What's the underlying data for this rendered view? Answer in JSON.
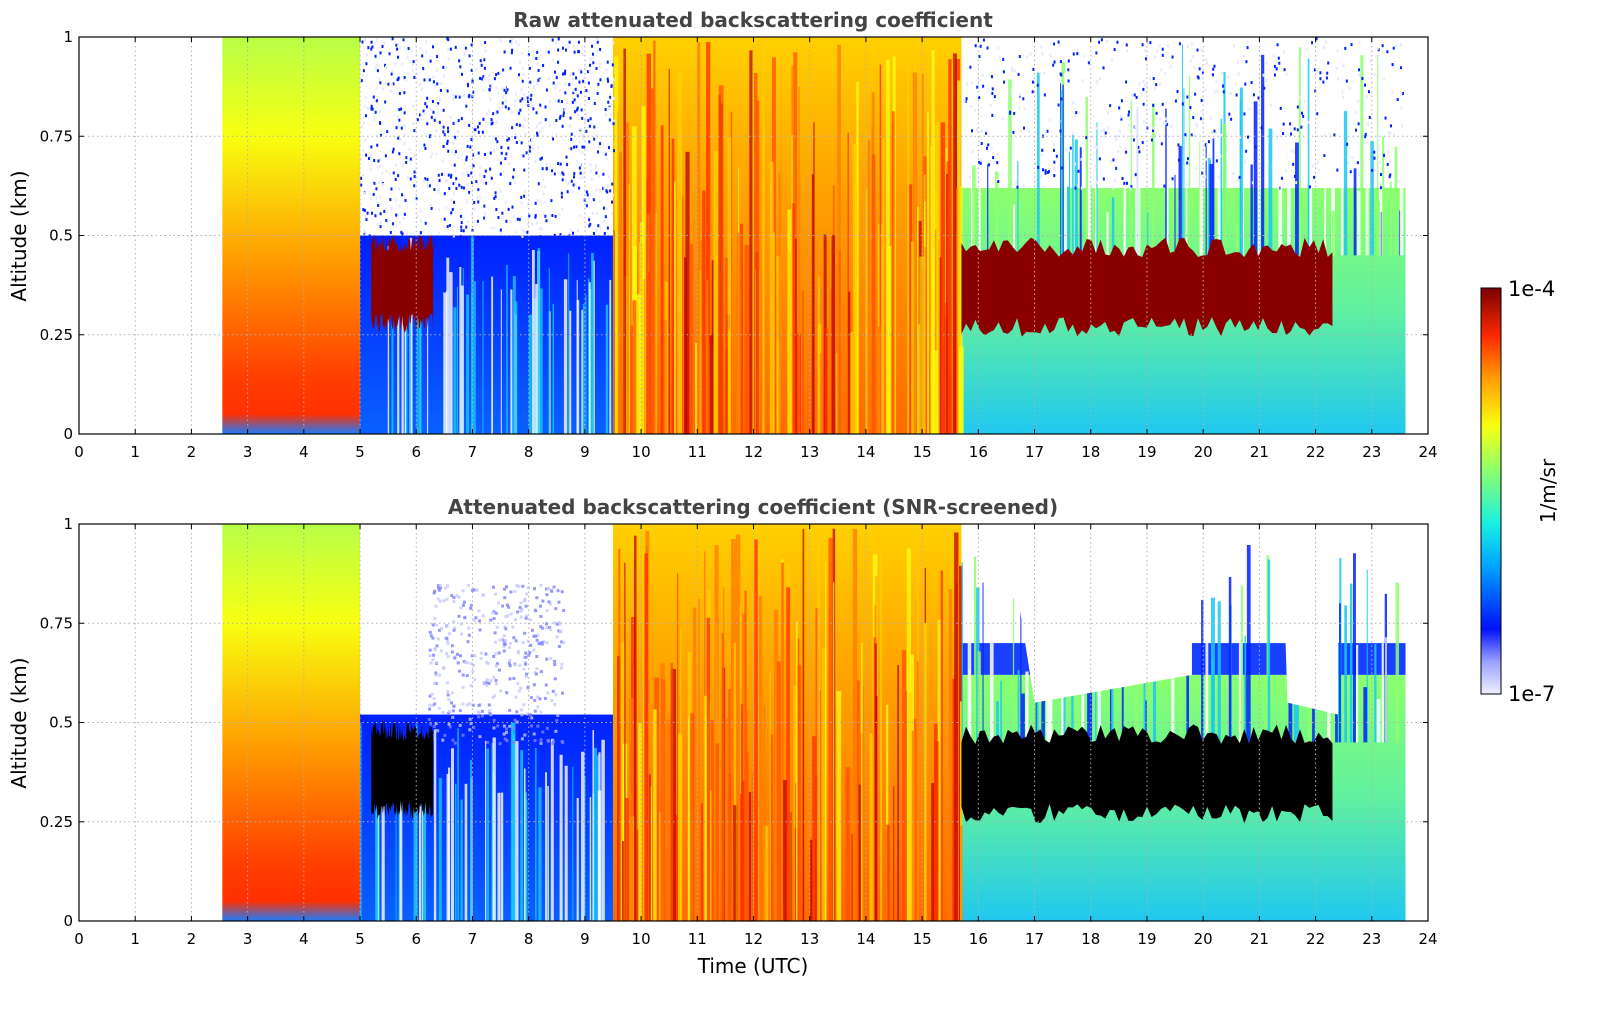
{
  "chart_data": [
    {
      "type": "heatmap",
      "title": "Raw attenuated backscattering coefficient",
      "xlabel": "",
      "ylabel": "Altitude (km)",
      "xlim": [
        0,
        24
      ],
      "ylim": [
        0,
        1
      ],
      "x_ticks": [
        "0",
        "1",
        "2",
        "3",
        "4",
        "5",
        "6",
        "7",
        "8",
        "9",
        "10",
        "11",
        "12",
        "13",
        "14",
        "15",
        "16",
        "17",
        "18",
        "19",
        "20",
        "21",
        "22",
        "23",
        "24"
      ],
      "y_ticks": [
        "0",
        "0.25",
        "0.5",
        "0.75",
        "1"
      ],
      "grid": true,
      "data_time_range_utc": [
        2.55,
        23.6
      ],
      "features": [
        {
          "time": [
            2.55,
            5.0
          ],
          "altitude_km": [
            0.0,
            1.0
          ],
          "description": "strong signal, yellow aloft to red near surface"
        },
        {
          "time": [
            5.2,
            6.3
          ],
          "altitude_km": [
            0.28,
            0.48
          ],
          "description": "saturated layer"
        },
        {
          "time": [
            9.5,
            15.7
          ],
          "altitude_km": [
            0.0,
            1.0
          ],
          "description": "strong orange/red signal with dark red layers"
        },
        {
          "time": [
            15.7,
            22.3
          ],
          "altitude_km": [
            0.27,
            0.47
          ],
          "description": "saturated dark red layer"
        }
      ]
    },
    {
      "type": "heatmap",
      "title": "Attenuated backscattering coefficient (SNR-screened)",
      "xlabel": "Time (UTC)",
      "ylabel": "Altitude (km)",
      "xlim": [
        0,
        24
      ],
      "ylim": [
        0,
        1
      ],
      "x_ticks": [
        "0",
        "1",
        "2",
        "3",
        "4",
        "5",
        "6",
        "7",
        "8",
        "9",
        "10",
        "11",
        "12",
        "13",
        "14",
        "15",
        "16",
        "17",
        "18",
        "19",
        "20",
        "21",
        "22",
        "23",
        "24"
      ],
      "y_ticks": [
        "0",
        "0.25",
        "0.5",
        "0.75",
        "1"
      ],
      "grid": true,
      "data_time_range_utc": [
        2.55,
        23.6
      ],
      "features": [
        {
          "time": [
            5.2,
            6.3
          ],
          "altitude_km": [
            0.28,
            0.48
          ],
          "description": "saturated layer shown in black"
        },
        {
          "time": [
            15.7,
            22.3
          ],
          "altitude_km": [
            0.27,
            0.47
          ],
          "description": "saturated layer shown in black"
        },
        {
          "time": [
            5.0,
            9.5
          ],
          "altitude_km": [
            0.5,
            1.0
          ],
          "description": "low-SNR region screened out (white)"
        }
      ]
    }
  ],
  "colorbar": {
    "max_label": "1e-4",
    "min_label": "1e-7",
    "unit_label": "1/m/sr",
    "colormap": "jet"
  }
}
